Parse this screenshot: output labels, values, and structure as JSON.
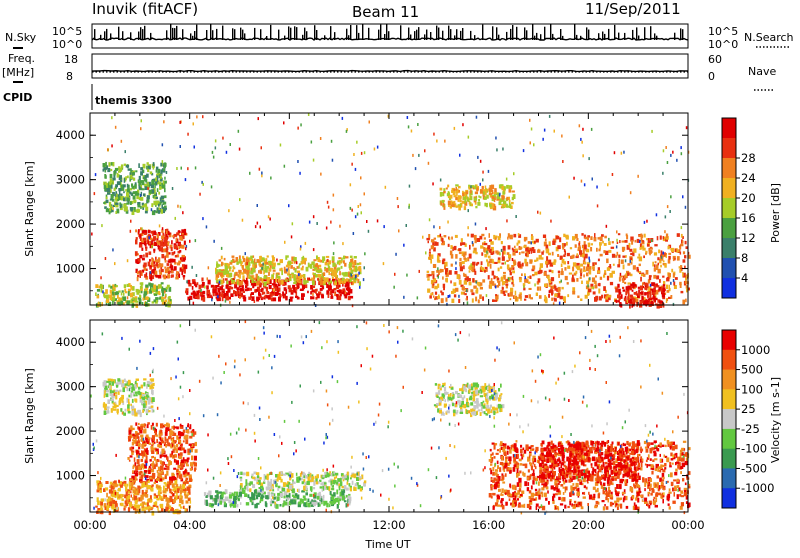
{
  "header": {
    "station": "Inuvik (fitACF)",
    "beam": "Beam 11",
    "date": "11/Sep/2011"
  },
  "top_panels": {
    "nsky_label": "N.Sky",
    "nsearch_label": "N.Search",
    "freq_label": "Freq.",
    "freq_unit": "[MHz]",
    "nave_label": "Nave",
    "cpid_label": "CPID",
    "cpid_value": "themis 3300",
    "nsky_ticks": [
      "10^5",
      "10^0"
    ],
    "nsearch_ticks": [
      "10^5",
      "10^0"
    ],
    "freq_ticks": [
      "18",
      "8"
    ],
    "nave_ticks": [
      "60",
      "0"
    ],
    "freq_mhz": 10.9,
    "nave_level": 12
  },
  "chart_data": [
    {
      "type": "heatmap",
      "name": "power-panel",
      "ylabel": "Slant Range [km]",
      "yticks": [
        "1000",
        "2000",
        "3000",
        "4000"
      ],
      "ylim": [
        180,
        4500
      ],
      "colorbar_label": "Power [dB]",
      "colorbar_ticks": [
        "4",
        "8",
        "12",
        "16",
        "20",
        "24",
        "28"
      ],
      "colorbar_colors": [
        "#1030e0",
        "#2050b0",
        "#3a7f6a",
        "#4aa040",
        "#a6cc28",
        "#f0b020",
        "#f08020",
        "#e83010",
        "#e00000"
      ],
      "echo_regions": [
        {
          "t0": 0.2,
          "t1": 3.2,
          "r0": 200,
          "r1": 700,
          "color_index": 4
        },
        {
          "t0": 1.8,
          "t1": 3.8,
          "r0": 800,
          "r1": 1900,
          "color_index": 7
        },
        {
          "t0": 3.8,
          "t1": 10.5,
          "r0": 350,
          "r1": 800,
          "color_index": 8
        },
        {
          "t0": 5.0,
          "t1": 10.8,
          "r0": 700,
          "r1": 1300,
          "color_index": 5
        },
        {
          "t0": 13.5,
          "t1": 24.0,
          "r0": 300,
          "r1": 1800,
          "color_index": 6
        },
        {
          "t0": 14.0,
          "t1": 17.0,
          "r0": 2400,
          "r1": 2900,
          "color_index": 5
        },
        {
          "t0": 0.5,
          "t1": 3.0,
          "r0": 2300,
          "r1": 3400,
          "color_index": 3
        },
        {
          "t0": 21.0,
          "t1": 23.0,
          "r0": 200,
          "r1": 700,
          "color_index": 8
        }
      ]
    },
    {
      "type": "heatmap",
      "name": "velocity-panel",
      "ylabel": "Slant Range [km]",
      "yticks": [
        "1000",
        "2000",
        "3000",
        "4000"
      ],
      "ylim": [
        180,
        4500
      ],
      "xlabel": "Time UT",
      "xticks": [
        "00:00",
        "04:00",
        "08:00",
        "12:00",
        "16:00",
        "20:00",
        "00:00"
      ],
      "xlim": [
        0,
        24
      ],
      "colorbar_label": "Velocity [m s-1]",
      "colorbar_ticks": [
        "1000",
        "500",
        "100",
        "25",
        "-25",
        "-100",
        "-500",
        "-1000"
      ],
      "colorbar_colors": [
        "#1030e0",
        "#2a6ab0",
        "#3a9a50",
        "#62c840",
        "#c8c8c8",
        "#f0c020",
        "#f09020",
        "#f05010",
        "#e80000"
      ],
      "echo_regions": [
        {
          "t0": 1.5,
          "t1": 4.2,
          "r0": 900,
          "r1": 2200,
          "color_index": 7
        },
        {
          "t0": 0.2,
          "t1": 4.0,
          "r0": 200,
          "r1": 900,
          "color_index": 6
        },
        {
          "t0": 4.5,
          "t1": 10.5,
          "r0": 350,
          "r1": 700,
          "color_index": 3
        },
        {
          "t0": 6.0,
          "t1": 11.0,
          "r0": 700,
          "r1": 1100,
          "color_index": 4
        },
        {
          "t0": 13.8,
          "t1": 16.5,
          "r0": 2400,
          "r1": 3100,
          "color_index": 4
        },
        {
          "t0": 16.0,
          "t1": 24.0,
          "r0": 300,
          "r1": 1800,
          "color_index": 7
        },
        {
          "t0": 18.0,
          "t1": 22.0,
          "r0": 900,
          "r1": 1800,
          "color_index": 8
        },
        {
          "t0": 0.5,
          "t1": 2.5,
          "r0": 2400,
          "r1": 3200,
          "color_index": 4
        }
      ]
    }
  ]
}
